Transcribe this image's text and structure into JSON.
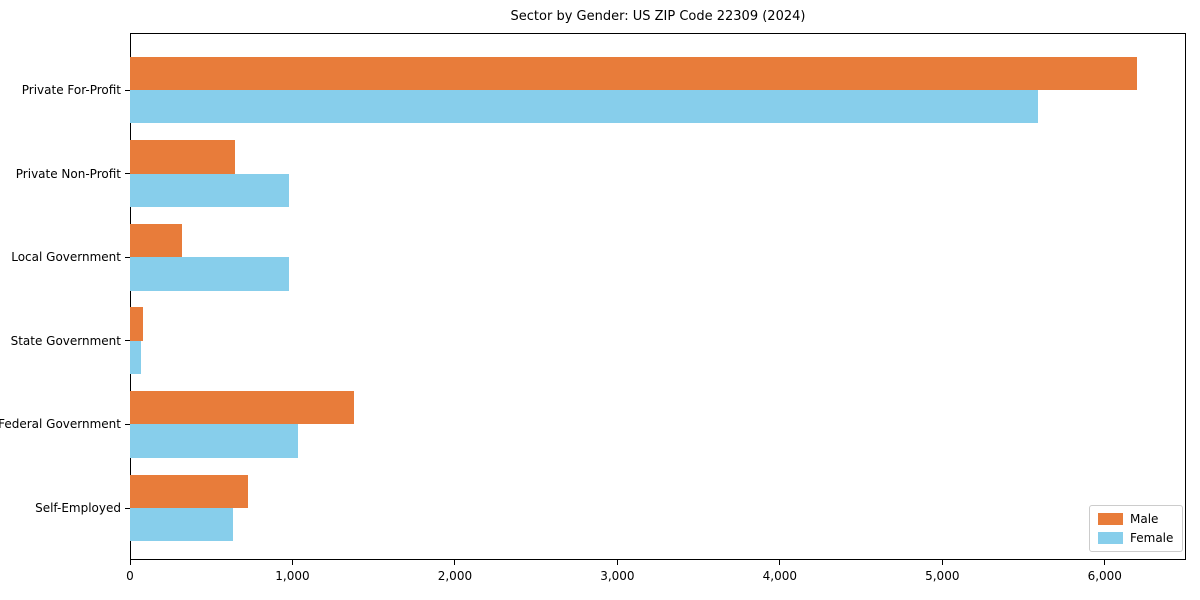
{
  "title": "Sector by Gender: US ZIP Code 22309 (2024)",
  "colors": {
    "male": "#e87c3a",
    "female": "#87ceeb",
    "spine": "#000000",
    "legend_border": "#cccccc",
    "background": "#ffffff",
    "text": "#000000"
  },
  "legend": {
    "position": "lower right",
    "items": [
      {
        "label": "Male",
        "color": "#e87c3a"
      },
      {
        "label": "Female",
        "color": "#87ceeb"
      }
    ]
  },
  "chart_data": {
    "type": "bar",
    "orientation": "horizontal",
    "title": "Sector by Gender: US ZIP Code 22309 (2024)",
    "xlabel": "",
    "ylabel": "",
    "grid": false,
    "legend_position": "lower right",
    "categories": [
      "Private For-Profit",
      "Private Non-Profit",
      "Local Government",
      "State Government",
      "Federal Government",
      "Self-Employed"
    ],
    "series": [
      {
        "name": "Male",
        "color": "#e87c3a",
        "values": [
          6200,
          645,
          320,
          80,
          1380,
          725
        ]
      },
      {
        "name": "Female",
        "color": "#87ceeb",
        "values": [
          5590,
          980,
          980,
          65,
          1035,
          635
        ]
      }
    ],
    "xlim": [
      0,
      6500
    ],
    "xticks": [
      0,
      1000,
      2000,
      3000,
      4000,
      5000,
      6000
    ],
    "xtick_labels": [
      "0",
      "1,000",
      "2,000",
      "3,000",
      "4,000",
      "5,000",
      "6,000"
    ]
  }
}
